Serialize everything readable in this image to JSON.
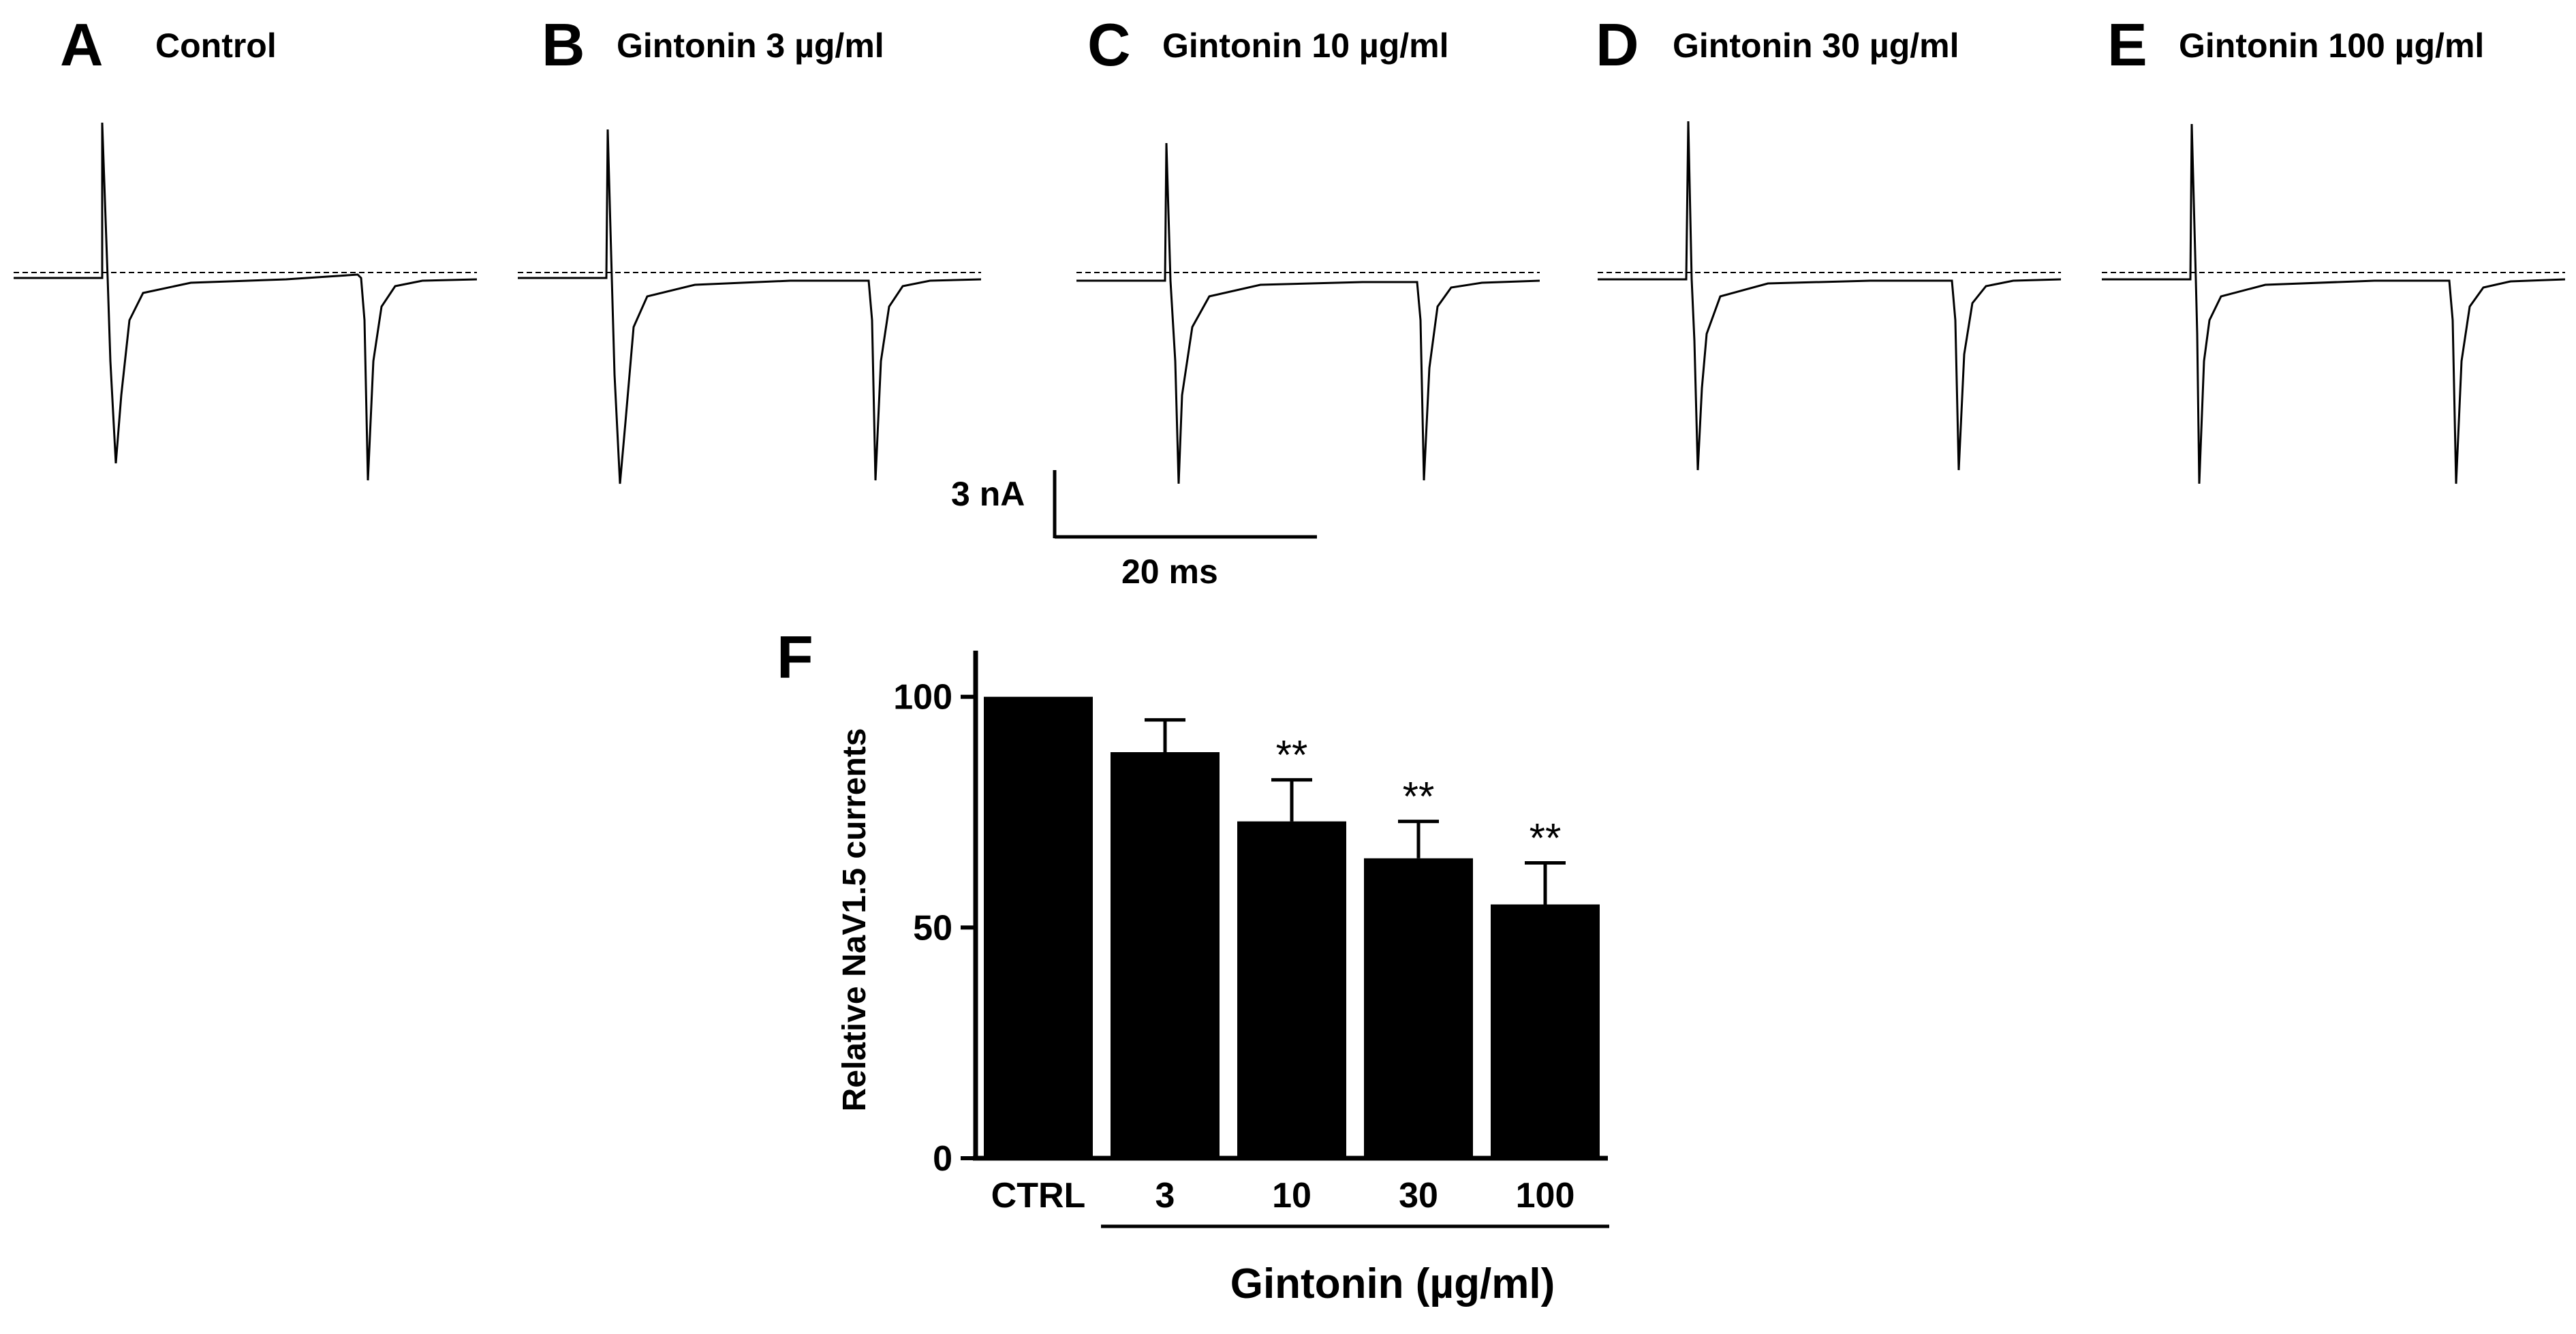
{
  "traces": [
    {
      "letter": "A",
      "title": "Control"
    },
    {
      "letter": "B",
      "title": "Gintonin 3  µg/ml"
    },
    {
      "letter": "C",
      "title": "Gintonin 10  µg/ml"
    },
    {
      "letter": "D",
      "title": "Gintonin 30  µg/ml"
    },
    {
      "letter": "E",
      "title": "Gintonin 100  µg/ml"
    }
  ],
  "scale_bar": {
    "current_label": "3 nA",
    "time_label": "20 ms"
  },
  "chart_data": {
    "type": "bar",
    "panel_letter": "F",
    "categories": [
      "CTRL",
      "3",
      "10",
      "30",
      "100"
    ],
    "values": [
      100,
      88,
      73,
      65,
      55
    ],
    "errors": [
      0,
      7,
      9,
      8,
      9
    ],
    "significance": [
      "",
      "",
      "**",
      "**",
      "**"
    ],
    "ylabel": "Relative NaV1.5 currents",
    "xlabel": "Gintonin (µg/ml)",
    "ylim": [
      0,
      110
    ],
    "yticks": [
      0,
      50,
      100
    ],
    "bar_color": "#000000"
  }
}
